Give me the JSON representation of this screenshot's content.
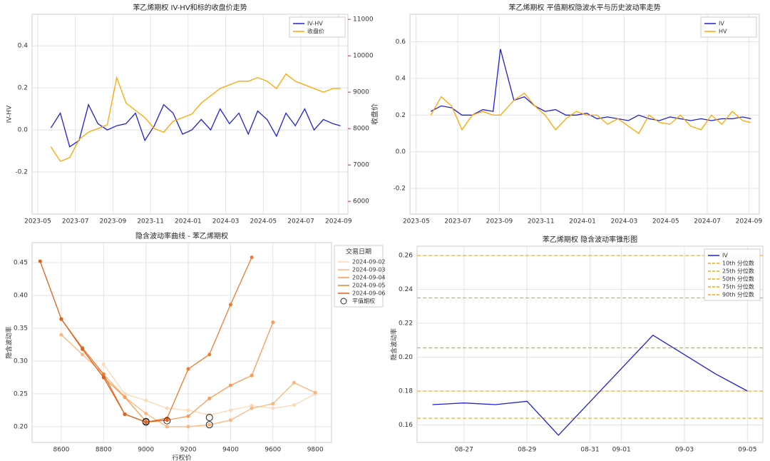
{
  "chart_data": [
    {
      "type": "line",
      "title": "苯乙烯期权 IV-HV和标的收盘价走势",
      "ylabel": "IV-HV",
      "y2label": "收盘价",
      "legend": "upper right",
      "grid": true,
      "xlim": [
        -0.3,
        16.5
      ],
      "ylim": [
        -0.4,
        0.55
      ],
      "y2lim": [
        5650,
        11140
      ],
      "xticks": [
        {
          "value": 0,
          "label": "2023-05"
        },
        {
          "value": 2,
          "label": "2023-07"
        },
        {
          "value": 4,
          "label": "2023-09"
        },
        {
          "value": 6,
          "label": "2023-11"
        },
        {
          "value": 8,
          "label": "2024-01"
        },
        {
          "value": 10,
          "label": "2024-03"
        },
        {
          "value": 12,
          "label": "2024-05"
        },
        {
          "value": 14,
          "label": "2024-07"
        },
        {
          "value": 16,
          "label": "2024-09"
        }
      ],
      "yticks": [
        -0.2,
        {
          "value": 0,
          "label": "0.0"
        },
        0.2,
        0.4
      ],
      "y2ticks": [
        6000,
        7000,
        8000,
        9000,
        10000,
        11000
      ],
      "x": [
        0.7,
        1.2,
        1.7,
        2.2,
        2.7,
        3.2,
        3.7,
        4.2,
        4.7,
        5.2,
        5.7,
        6.2,
        6.7,
        7.2,
        7.7,
        8.2,
        8.7,
        9.2,
        9.7,
        10.2,
        10.7,
        11.2,
        11.7,
        12.2,
        12.7,
        13.2,
        13.7,
        14.2,
        14.7,
        15.2,
        15.7,
        16.1
      ],
      "series": [
        {
          "name": "IV-HV",
          "color": "#1f1fd6",
          "values": [
            0.01,
            0.08,
            -0.08,
            -0.05,
            0.12,
            0.03,
            0.0,
            0.02,
            0.03,
            0.08,
            -0.05,
            0.02,
            0.12,
            0.08,
            -0.02,
            0.0,
            0.05,
            0.0,
            0.1,
            0.03,
            0.08,
            -0.02,
            0.09,
            0.05,
            -0.03,
            0.08,
            0.02,
            0.1,
            0.0,
            0.05,
            0.03,
            0.02
          ]
        },
        {
          "name": "收盘价",
          "color": "#ffa500",
          "axis": "y2",
          "values": [
            7500,
            7100,
            7200,
            7700,
            7900,
            8000,
            8100,
            9400,
            8700,
            8500,
            8300,
            8000,
            7900,
            8200,
            8300,
            8400,
            8700,
            8900,
            9100,
            9200,
            9300,
            9300,
            9400,
            9300,
            9100,
            9500,
            9300,
            9200,
            9100,
            9000,
            9100,
            9100
          ]
        }
      ]
    },
    {
      "type": "line",
      "title": "苯乙烯期权 平值期权隐波水平与历史波动率走势",
      "legend": "upper right",
      "grid": true,
      "xlim": [
        -0.3,
        16.5
      ],
      "ylim": [
        -0.34,
        0.75
      ],
      "xticks": [
        {
          "value": 0,
          "label": "2023-05"
        },
        {
          "value": 2,
          "label": "2023-07"
        },
        {
          "value": 4,
          "label": "2023-09"
        },
        {
          "value": 6,
          "label": "2023-11"
        },
        {
          "value": 8,
          "label": "2024-01"
        },
        {
          "value": 10,
          "label": "2024-03"
        },
        {
          "value": 12,
          "label": "2024-05"
        },
        {
          "value": 14,
          "label": "2024-07"
        },
        {
          "value": 16,
          "label": "2024-09"
        }
      ],
      "yticks": [
        -0.2,
        {
          "value": 0,
          "label": "0.0"
        },
        0.2,
        0.4,
        0.6
      ],
      "x": [
        0.7,
        1.2,
        1.7,
        2.2,
        2.7,
        3.2,
        3.7,
        4.05,
        4.7,
        5.2,
        5.7,
        6.2,
        6.7,
        7.2,
        7.7,
        8.2,
        8.7,
        9.2,
        9.7,
        10.2,
        10.7,
        11.2,
        11.7,
        12.2,
        12.7,
        13.2,
        13.7,
        14.2,
        14.7,
        15.2,
        15.7,
        16.1
      ],
      "series": [
        {
          "name": "IV",
          "color": "#1f1fd6",
          "values": [
            0.22,
            0.25,
            0.24,
            0.2,
            0.2,
            0.23,
            0.22,
            0.56,
            0.28,
            0.3,
            0.25,
            0.22,
            0.23,
            0.2,
            0.2,
            0.21,
            0.18,
            0.19,
            0.18,
            0.17,
            0.2,
            0.18,
            0.17,
            0.19,
            0.18,
            0.17,
            0.18,
            0.17,
            0.18,
            0.18,
            0.19,
            0.18
          ]
        },
        {
          "name": "HV",
          "color": "#ffa500",
          "values": [
            0.2,
            0.3,
            0.25,
            0.12,
            0.2,
            0.22,
            0.2,
            0.2,
            0.28,
            0.32,
            0.25,
            0.2,
            0.12,
            0.18,
            0.22,
            0.2,
            0.2,
            0.15,
            0.18,
            0.14,
            0.1,
            0.2,
            0.16,
            0.15,
            0.2,
            0.14,
            0.12,
            0.2,
            0.15,
            0.22,
            0.17,
            0.16
          ]
        }
      ]
    },
    {
      "type": "line",
      "title": "隐含波动率曲线 - 苯乙烯期权",
      "xlabel": "行权价",
      "ylabel": "隐含波动率",
      "legend": "outside right",
      "legend_title": "交易日期",
      "grid": true,
      "markers": true,
      "xlim": [
        8462,
        9877
      ],
      "ylim": [
        0.176,
        0.4804
      ],
      "xticks": [
        8600,
        8800,
        9000,
        9200,
        9400,
        9600,
        9800
      ],
      "yticks": [
        {
          "value": 0.2,
          "label": "0.20"
        },
        0.25,
        {
          "value": 0.3,
          "label": "0.30"
        },
        0.35,
        {
          "value": 0.4,
          "label": "0.40"
        },
        0.45
      ],
      "series": [
        {
          "name": "2024-09-02",
          "color": "#fdd9b5",
          "x": [
            8800,
            8900,
            9000,
            9100,
            9200,
            9300,
            9400,
            9500,
            9600,
            9700,
            9800
          ],
          "values": [
            0.295,
            0.25,
            0.24,
            0.228,
            0.225,
            0.218,
            0.225,
            0.232,
            0.228,
            0.233,
            0.25
          ]
        },
        {
          "name": "2024-09-03",
          "color": "#fdb57e",
          "x": [
            8600,
            8700,
            8800,
            8900,
            9000,
            9100,
            9200,
            9300,
            9400,
            9500,
            9600,
            9700,
            9800
          ],
          "values": [
            0.34,
            0.31,
            0.28,
            0.245,
            0.22,
            0.2,
            0.2,
            0.203,
            0.21,
            0.228,
            0.235,
            0.267,
            0.252
          ]
        },
        {
          "name": "2024-09-04",
          "color": "#fc9a55",
          "x": [
            8800,
            8900,
            9000,
            9100,
            9200,
            9300,
            9400,
            9500,
            9600
          ],
          "values": [
            0.275,
            0.245,
            0.208,
            0.21,
            0.216,
            0.243,
            0.263,
            0.278,
            0.359
          ]
        },
        {
          "name": "2024-09-05",
          "color": "#ef7a30",
          "x": [
            8600,
            8700,
            8800,
            8900,
            9000,
            9100,
            9200,
            9300,
            9400,
            9500
          ],
          "values": [
            0.364,
            0.32,
            0.28,
            0.219,
            0.207,
            0.213,
            0.288,
            0.31,
            0.386,
            0.458
          ]
        },
        {
          "name": "2024-09-06",
          "color": "#e0601a",
          "x": [
            8500,
            8600,
            8700,
            8800,
            8900,
            9000,
            9100
          ],
          "values": [
            0.452,
            0.364,
            0.318,
            0.275,
            0.219,
            0.207,
            0.21
          ]
        }
      ],
      "atm": {
        "name": "平值期权",
        "x": [
          9000,
          9100,
          9300,
          9300,
          9000
        ],
        "values": [
          0.207,
          0.209,
          0.203,
          0.214,
          0.208
        ]
      }
    },
    {
      "type": "line",
      "title": "苯乙烯期权 隐含波动率锥形图",
      "ylabel": "隐含波动率",
      "legend": "upper right",
      "grid": true,
      "xlim": [
        -0.49,
        10.49
      ],
      "ylim": [
        0.1497,
        0.2655
      ],
      "xticks": [
        {
          "value": 1,
          "label": "08-27"
        },
        {
          "value": 3,
          "label": "08-29"
        },
        {
          "value": 5,
          "label": "08-31"
        },
        {
          "value": 6,
          "label": "09-01"
        },
        {
          "value": 8,
          "label": "09-03"
        },
        {
          "value": 10,
          "label": "09-05"
        }
      ],
      "yticks": [
        0.16,
        0.18,
        {
          "value": 0.2,
          "label": "0.20"
        },
        0.22,
        0.24,
        0.26
      ],
      "x": [
        0,
        1,
        2,
        3,
        4,
        7,
        9,
        10
      ],
      "series": [
        {
          "name": "IV",
          "color": "#1f1fd6",
          "values": [
            0.172,
            0.173,
            0.172,
            0.174,
            0.154,
            0.213,
            0.19,
            0.18
          ]
        }
      ],
      "reference_lines": [
        {
          "name": "10th 分位数",
          "color": "#ffa500",
          "value": 0.164
        },
        {
          "name": "25th 分位数",
          "color": "#ffa500",
          "value": 0.18
        },
        {
          "name": "50th 分位数",
          "color": "#ffa500",
          "value": 0.2055
        },
        {
          "name": "75th 分位数",
          "color": "#ffa500",
          "value": 0.235
        },
        {
          "name": "90th 分位数",
          "color": "#ffa500",
          "value": 0.26
        }
      ]
    }
  ]
}
